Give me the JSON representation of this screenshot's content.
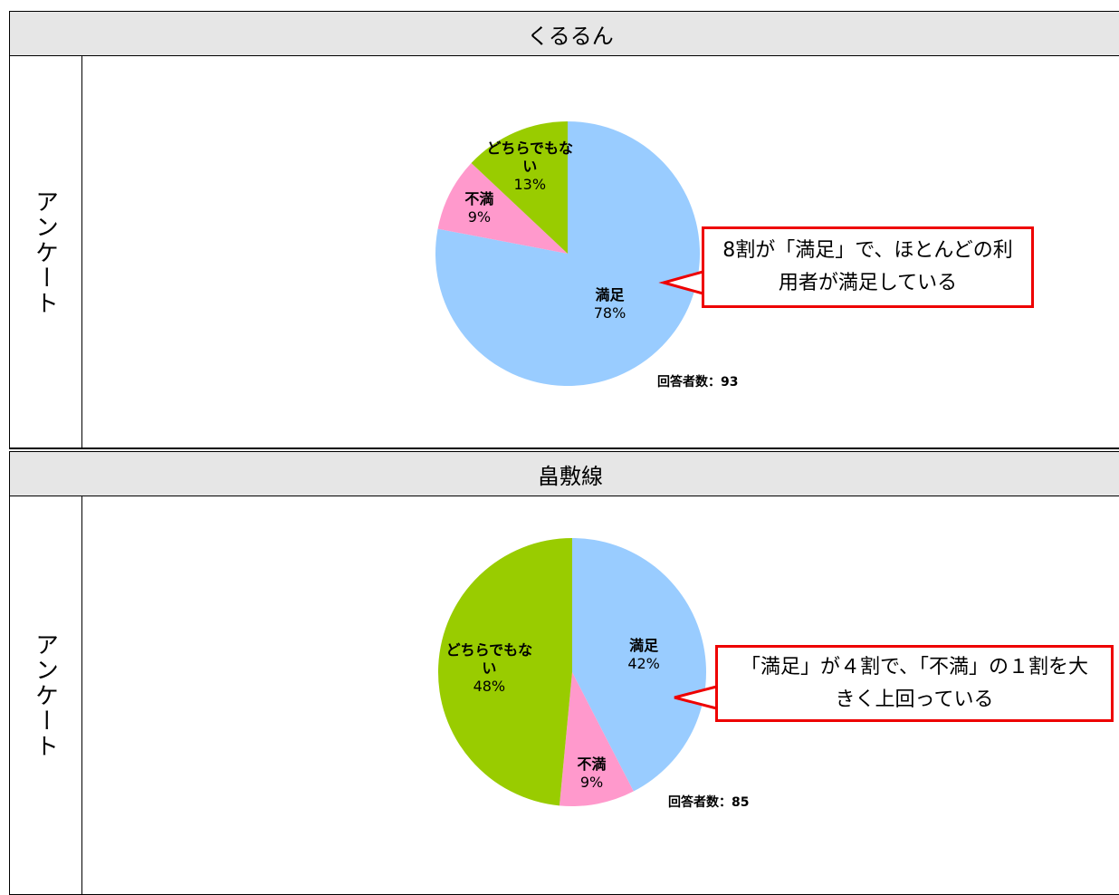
{
  "table": {
    "sections": [
      {
        "header": "くるるん",
        "row_label": "アンケート"
      },
      {
        "header": "畠敷線",
        "row_label": "アンケート"
      }
    ]
  },
  "chart_data": [
    {
      "type": "pie",
      "categories": [
        "満足",
        "不満",
        "どちらでもない"
      ],
      "values": [
        78,
        9,
        13
      ],
      "value_labels": [
        "78%",
        "9%",
        "13%"
      ],
      "colors": [
        "#99ccff",
        "#ff99cc",
        "#99cc00"
      ],
      "respondents": "回答者数：93",
      "callout": "8割が「満足」で、ほとんどの利用者が満足している"
    },
    {
      "type": "pie",
      "categories": [
        "満足",
        "不満",
        "どちらでもない"
      ],
      "values": [
        42,
        9,
        48
      ],
      "value_labels": [
        "42%",
        "9%",
        "48%"
      ],
      "colors": [
        "#99ccff",
        "#ff99cc",
        "#99cc00"
      ],
      "respondents": "回答者数：85",
      "callout": "「満足」が４割で、「不満」の１割を大きく上回っている"
    }
  ]
}
